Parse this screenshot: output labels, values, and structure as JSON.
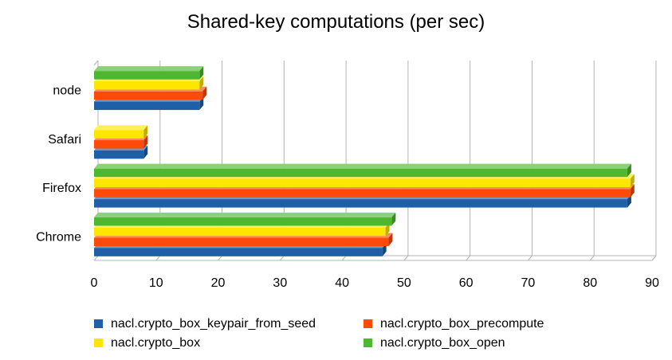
{
  "chart_data": {
    "type": "bar",
    "orientation": "horizontal",
    "title": "Shared-key computations (per sec)",
    "categories": [
      "node",
      "Safari",
      "Firefox",
      "Chrome"
    ],
    "xlim": [
      0,
      90
    ],
    "xticks": [
      "0",
      "10",
      "20",
      "30",
      "40",
      "50",
      "60",
      "70",
      "80",
      "90"
    ],
    "grid": true,
    "legend_position": "bottom",
    "series": [
      {
        "name": "nacl.crypto_box_keypair_from_seed",
        "color": "#1f5fa8",
        "values": [
          17,
          8,
          86,
          46.5
        ]
      },
      {
        "name": "nacl.crypto_box_precompute",
        "color": "#ff4a0a",
        "values": [
          17.5,
          8,
          86.5,
          47.5
        ]
      },
      {
        "name": "nacl.crypto_box",
        "color": "#ffe600",
        "values": [
          17,
          8,
          86.5,
          47
        ]
      },
      {
        "name": "nacl.crypto_box_open",
        "color": "#4db82f",
        "values": [
          17,
          null,
          86,
          48
        ]
      }
    ]
  }
}
